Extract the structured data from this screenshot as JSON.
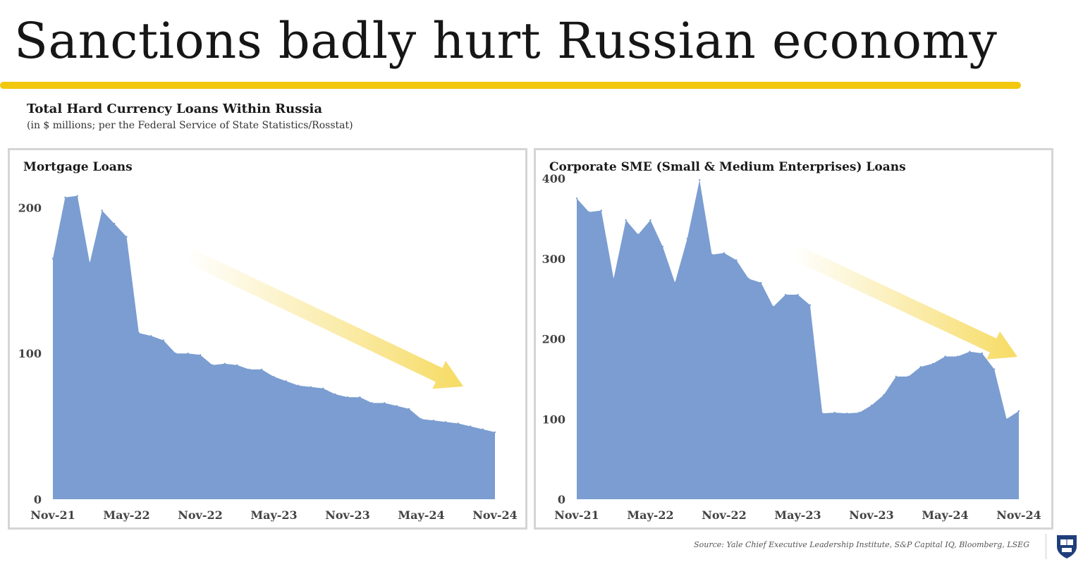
{
  "page": {
    "title": "Sanctions badly hurt Russian economy",
    "subtitle": "Total Hard Currency Loans Within Russia",
    "subtitle_note": "(in $ millions; per the Federal Service of State Statistics/Rosstat)",
    "source": "Source: Yale Chief Executive Leadership Institute, S&P Capital IQ, Bloomberg, LSEG",
    "accent_color": "#f2c80f",
    "area_color": "#7b9dd1",
    "logo_icon": "yale-shield-icon"
  },
  "chart_data": [
    {
      "type": "area",
      "title": "Mortgage Loans",
      "x": [
        "Nov-21",
        "Dec-21",
        "Jan-22",
        "Feb-22",
        "Mar-22",
        "Apr-22",
        "May-22",
        "Jun-22",
        "Jul-22",
        "Aug-22",
        "Sep-22",
        "Oct-22",
        "Nov-22",
        "Dec-22",
        "Jan-23",
        "Feb-23",
        "Mar-23",
        "Apr-23",
        "May-23",
        "Jun-23",
        "Jul-23",
        "Aug-23",
        "Sep-23",
        "Oct-23",
        "Nov-23",
        "Dec-23",
        "Jan-24",
        "Feb-24",
        "Mar-24",
        "Apr-24",
        "May-24",
        "Jun-24",
        "Jul-24",
        "Aug-24",
        "Sep-24",
        "Oct-24",
        "Nov-24"
      ],
      "values": [
        165,
        207,
        208,
        162,
        198,
        189,
        180,
        114,
        112,
        109,
        100,
        100,
        99,
        92,
        93,
        92,
        89,
        89,
        84,
        81,
        78,
        77,
        76,
        72,
        70,
        70,
        66,
        66,
        64,
        62,
        55,
        54,
        53,
        52,
        50,
        48,
        46
      ],
      "xticks": [
        "Nov-21",
        "May-22",
        "Nov-22",
        "May-23",
        "Nov-23",
        "May-24",
        "Nov-24"
      ],
      "yticks": [
        0,
        100,
        200
      ],
      "ylim": [
        0,
        220
      ],
      "annotation": "downward-trend-arrow"
    },
    {
      "type": "area",
      "title": "Corporate SME (Small & Medium Enterprises) Loans",
      "x": [
        "Nov-21",
        "Dec-21",
        "Jan-22",
        "Feb-22",
        "Mar-22",
        "Apr-22",
        "May-22",
        "Jun-22",
        "Jul-22",
        "Aug-22",
        "Sep-22",
        "Oct-22",
        "Nov-22",
        "Dec-22",
        "Jan-23",
        "Feb-23",
        "Mar-23",
        "Apr-23",
        "May-23",
        "Jun-23",
        "Jul-23",
        "Aug-23",
        "Sep-23",
        "Oct-23",
        "Nov-23",
        "Dec-23",
        "Jan-24",
        "Feb-24",
        "Mar-24",
        "Apr-24",
        "May-24",
        "Jun-24",
        "Jul-24",
        "Aug-24",
        "Sep-24",
        "Oct-24",
        "Nov-24"
      ],
      "values": [
        375,
        358,
        360,
        275,
        348,
        330,
        348,
        315,
        270,
        325,
        398,
        305,
        307,
        298,
        275,
        270,
        240,
        255,
        255,
        242,
        107,
        108,
        107,
        108,
        117,
        130,
        153,
        153,
        165,
        169,
        178,
        178,
        184,
        182,
        162,
        100,
        110
      ],
      "xticks": [
        "Nov-21",
        "May-22",
        "Nov-22",
        "May-23",
        "Nov-23",
        "May-24",
        "Nov-24"
      ],
      "yticks": [
        0,
        100,
        200,
        300,
        400
      ],
      "ylim": [
        0,
        400
      ],
      "annotation": "downward-trend-arrow"
    }
  ]
}
